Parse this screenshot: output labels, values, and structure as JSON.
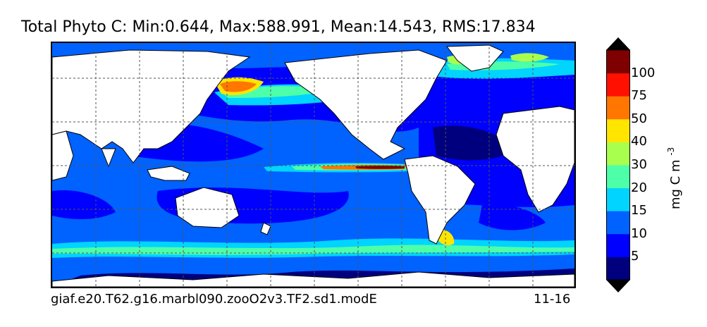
{
  "figure": {
    "title": "Total Phyto C: Min:0.644, Max:588.991, Mean:14.543, RMS:17.834",
    "case_name": "giaf.e20.T62.g16.marbl090.zooO2v3.TF2.sd1.modE",
    "date_label": "11-16"
  },
  "colorbar": {
    "unit_label": "mg C m",
    "unit_exponent": "-3",
    "tick_labels": [
      "5",
      "10",
      "15",
      "20",
      "30",
      "40",
      "50",
      "75",
      "100"
    ],
    "colors": [
      "#00007f",
      "#0000ff",
      "#0062ff",
      "#00d4ff",
      "#4dffa9",
      "#a9ff4d",
      "#ffe500",
      "#ff7600",
      "#ff1000",
      "#7f0000"
    ],
    "extend": "both"
  },
  "map": {
    "land_color": "#ffffff",
    "coastline_color": "#000000",
    "gridlines": "dashed"
  }
}
